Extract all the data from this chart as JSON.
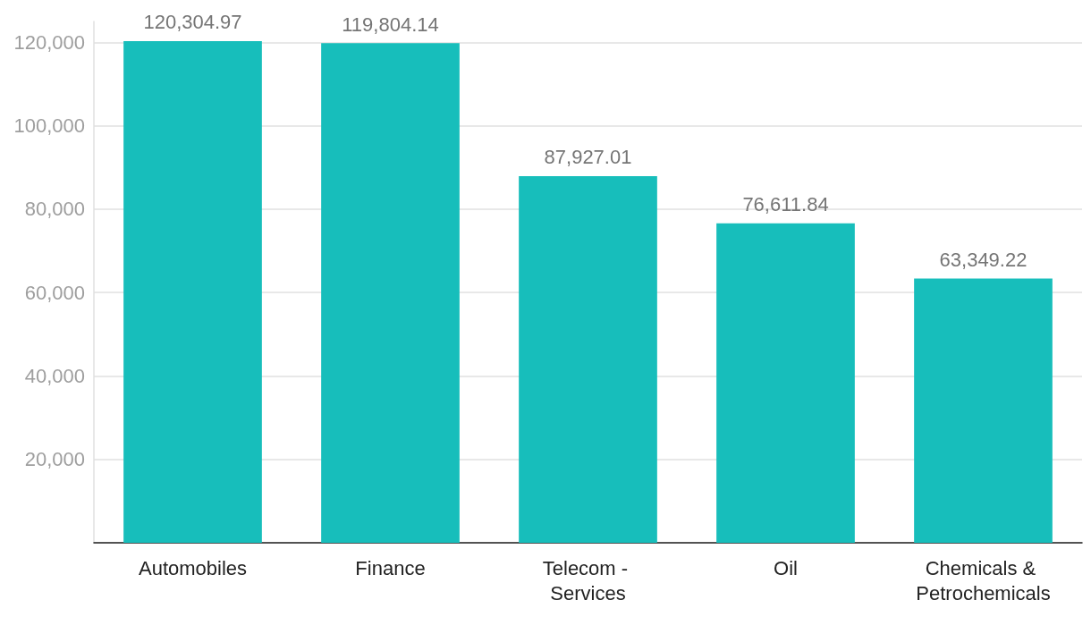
{
  "chart_data": {
    "type": "bar",
    "categories": [
      "Automobiles",
      "Finance",
      "Telecom - Services",
      "Oil",
      "Chemicals & Petrochemicals"
    ],
    "values": [
      120304.97,
      119804.14,
      87927.01,
      76611.84,
      63349.22
    ],
    "value_labels": [
      "120,304.97",
      "119,804.14",
      "87,927.01",
      "76,611.84",
      "63,349.22"
    ],
    "color": "#17bebb",
    "ylim": [
      0,
      125000
    ],
    "yticks": [
      {
        "value": 0,
        "label": null
      },
      {
        "value": 20000,
        "label": "20,000"
      },
      {
        "value": 40000,
        "label": "40,000"
      },
      {
        "value": 60000,
        "label": "60,000"
      },
      {
        "value": 80000,
        "label": "80,000"
      },
      {
        "value": 100000,
        "label": "100,000"
      },
      {
        "value": 120000,
        "label": "120,000"
      }
    ],
    "grid": "y"
  }
}
